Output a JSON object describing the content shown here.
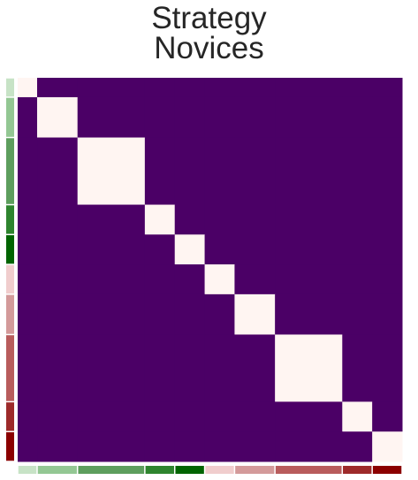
{
  "title_lines": [
    "Strategy",
    "Novices"
  ],
  "chart_data": {
    "type": "heatmap",
    "title": "Strategy\nNovices",
    "xlabel": "",
    "ylabel": "",
    "axes_visible": false,
    "n": 13,
    "colors": {
      "low": "#4b0066",
      "high": "#fff5f2",
      "background": "#ffffff"
    },
    "value_range": [
      0,
      1
    ],
    "matrix_description": "block-diagonal: 1 within the same group, 0 otherwise",
    "groups": [
      {
        "name": "g1",
        "size": 0.65,
        "color": "#c7e3c6"
      },
      {
        "name": "g2",
        "size": 1.35,
        "color": "#93c793"
      },
      {
        "name": "g3",
        "size": 2.25,
        "color": "#5d9e5d"
      },
      {
        "name": "g4",
        "size": 1.0,
        "color": "#2e842e"
      },
      {
        "name": "g5",
        "size": 1.0,
        "color": "#016401"
      },
      {
        "name": "g6",
        "size": 1.0,
        "color": "#f0cdcd"
      },
      {
        "name": "g7",
        "size": 1.35,
        "color": "#d39a9a"
      },
      {
        "name": "g8",
        "size": 2.25,
        "color": "#b85c5c"
      },
      {
        "name": "g9",
        "size": 1.0,
        "color": "#9d2a2a"
      },
      {
        "name": "g10",
        "size": 1.0,
        "color": "#8b0000"
      }
    ],
    "matrix": [
      [
        1,
        0,
        0,
        0,
        0,
        0,
        0,
        0,
        0,
        0
      ],
      [
        0,
        1,
        0,
        0,
        0,
        0,
        0,
        0,
        0,
        0
      ],
      [
        0,
        0,
        1,
        0,
        0,
        0,
        0,
        0,
        0,
        0
      ],
      [
        0,
        0,
        0,
        1,
        0,
        0,
        0,
        0,
        0,
        0
      ],
      [
        0,
        0,
        0,
        0,
        1,
        0,
        0,
        0,
        0,
        0
      ],
      [
        0,
        0,
        0,
        0,
        0,
        1,
        0,
        0,
        0,
        0
      ],
      [
        0,
        0,
        0,
        0,
        0,
        0,
        1,
        0,
        0,
        0
      ],
      [
        0,
        0,
        0,
        0,
        0,
        0,
        0,
        1,
        0,
        0
      ],
      [
        0,
        0,
        0,
        0,
        0,
        0,
        0,
        0,
        1,
        0
      ],
      [
        0,
        0,
        0,
        0,
        0,
        0,
        0,
        0,
        0,
        1
      ]
    ]
  }
}
